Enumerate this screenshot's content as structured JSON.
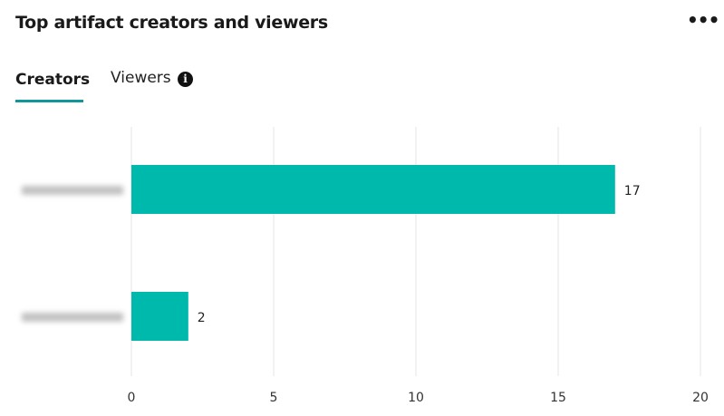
{
  "header": {
    "title": "Top artifact creators and viewers",
    "more_icon": "more-horizontal-icon"
  },
  "tabs": [
    {
      "label": "Creators",
      "active": true
    },
    {
      "label": "Viewers",
      "active": false,
      "icon": "info-icon"
    }
  ],
  "colors": {
    "bar": "#00b9ad",
    "tab_underline": "#11969a"
  },
  "chart_data": {
    "type": "bar",
    "orientation": "horizontal",
    "categories_blurred": true,
    "values": [
      17,
      2
    ],
    "data_labels": [
      "17",
      "2"
    ],
    "xlim": [
      0,
      20
    ],
    "xticks": [
      "0",
      "5",
      "10",
      "15",
      "20"
    ],
    "grid": true
  }
}
